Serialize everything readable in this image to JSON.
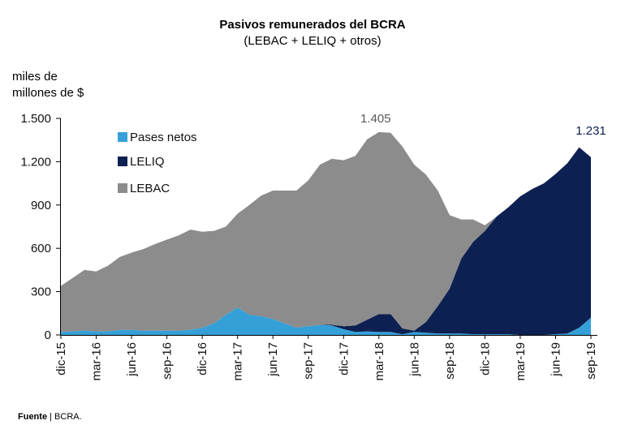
{
  "chart_data": {
    "type": "area",
    "stacked": true,
    "title": "Pasivos remunerados del BCRA",
    "subtitle": "(LEBAC + LELIQ + otros)",
    "ylabel_line1": "miles de",
    "ylabel_line2": "millones de $",
    "ylim": [
      0,
      1500
    ],
    "yticks": [
      0,
      300,
      600,
      900,
      1200,
      1500
    ],
    "ytick_labels": [
      "0",
      "300",
      "600",
      "900",
      "1.200",
      "1.500"
    ],
    "xtick_labels": [
      "dic-15",
      "mar-16",
      "jun-16",
      "sep-16",
      "dic-16",
      "mar-17",
      "jun-17",
      "sep-17",
      "dic-17",
      "mar-18",
      "jun-18",
      "sep-18",
      "dic-18",
      "mar-19",
      "jun-19",
      "sep-19"
    ],
    "legend_position": "top-left",
    "x": [
      "dic-15",
      "ene-16",
      "feb-16",
      "mar-16",
      "abr-16",
      "may-16",
      "jun-16",
      "jul-16",
      "ago-16",
      "sep-16",
      "oct-16",
      "nov-16",
      "dic-16",
      "ene-17",
      "feb-17",
      "mar-17",
      "abr-17",
      "may-17",
      "jun-17",
      "jul-17",
      "ago-17",
      "sep-17",
      "oct-17",
      "nov-17",
      "dic-17",
      "ene-18",
      "feb-18",
      "mar-18",
      "abr-18",
      "may-18",
      "jun-18",
      "jul-18",
      "ago-18",
      "sep-18",
      "oct-18",
      "nov-18",
      "dic-18",
      "ene-19",
      "feb-19",
      "mar-19",
      "abr-19",
      "may-19",
      "jun-19",
      "jul-19",
      "ago-19",
      "sep-19"
    ],
    "series": [
      {
        "name": "Pases netos",
        "color": "#35a0d8",
        "values": [
          20,
          25,
          30,
          25,
          25,
          35,
          35,
          30,
          30,
          30,
          30,
          35,
          50,
          80,
          140,
          190,
          140,
          130,
          110,
          80,
          50,
          60,
          70,
          65,
          40,
          20,
          25,
          20,
          20,
          5,
          20,
          15,
          10,
          10,
          10,
          5,
          5,
          5,
          5,
          0,
          0,
          0,
          5,
          10,
          50,
          120
        ]
      },
      {
        "name": "LELIQ",
        "color": "#0d2052",
        "values": [
          0,
          0,
          0,
          0,
          0,
          0,
          0,
          0,
          0,
          0,
          0,
          0,
          0,
          0,
          0,
          0,
          0,
          0,
          0,
          0,
          0,
          0,
          0,
          5,
          20,
          45,
          80,
          125,
          125,
          40,
          10,
          75,
          190,
          310,
          520,
          640,
          715,
          815,
          880,
          960,
          1010,
          1050,
          1110,
          1180,
          1250,
          1111
        ]
      },
      {
        "name": "LEBAC",
        "color": "#8c8c8c",
        "values": [
          320,
          370,
          420,
          415,
          455,
          505,
          535,
          565,
          600,
          630,
          660,
          695,
          665,
          640,
          610,
          650,
          760,
          835,
          890,
          920,
          950,
          1010,
          1110,
          1150,
          1150,
          1175,
          1250,
          1260,
          1255,
          1260,
          1150,
          1020,
          800,
          510,
          270,
          155,
          40,
          0,
          0,
          0,
          0,
          0,
          0,
          0,
          0,
          0
        ]
      }
    ],
    "annotations": [
      {
        "text": "1.405",
        "x": "mar-18",
        "y": 1405,
        "color": "#595959"
      },
      {
        "text": "1.231",
        "x": "sep-19",
        "y": 1231,
        "color": "#0d2052"
      }
    ]
  },
  "source": {
    "label": "Fuente",
    "separator": " | ",
    "text": "BCRA."
  }
}
